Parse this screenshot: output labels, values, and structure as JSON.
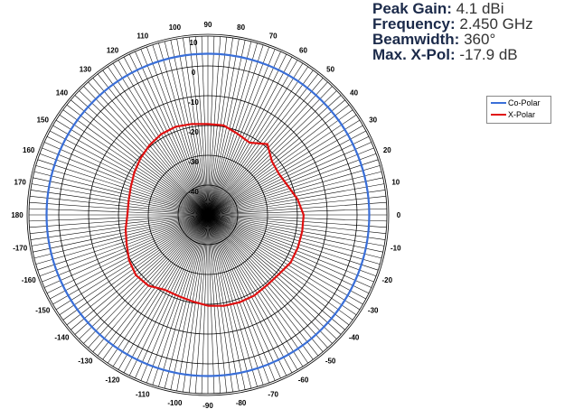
{
  "specs": [
    {
      "key": "Peak Gain:",
      "value": "4.1 dBi"
    },
    {
      "key": "Frequency:",
      "value": "2.450 GHz"
    },
    {
      "key": "Beamwidth:",
      "value": "360°"
    },
    {
      "key": "Max. X-Pol:",
      "value": "-17.9 dB"
    }
  ],
  "chart_data": {
    "type": "polar",
    "angular_unit": "degrees",
    "angular_ticks": [
      "90",
      "80",
      "70",
      "60",
      "50",
      "40",
      "30",
      "20",
      "10",
      "0",
      "-10",
      "-20",
      "-30",
      "-40",
      "-50",
      "-60",
      "-70",
      "-80",
      "-90",
      "-100",
      "-110",
      "-120",
      "-130",
      "-140",
      "-150",
      "-160",
      "-170",
      "180",
      "170",
      "160",
      "150",
      "140",
      "130",
      "120",
      "110",
      "100"
    ],
    "radial_ticks": [
      "10",
      "0",
      "-10",
      "-20",
      "-30",
      "-40"
    ],
    "radial_range": [
      -50,
      10
    ],
    "grid": true,
    "legend_position": "top-right",
    "series": [
      {
        "name": "Co-Polar",
        "color": "#3a6fd8",
        "angles": [
          0,
          90,
          180,
          270
        ],
        "values": [
          4.1,
          4.1,
          4.1,
          4.1
        ]
      },
      {
        "name": "X-Polar",
        "color": "#e01010",
        "angles": [
          0,
          10,
          20,
          30,
          40,
          50,
          60,
          70,
          80,
          90,
          100,
          110,
          120,
          130,
          140,
          150,
          160,
          170,
          180,
          190,
          200,
          210,
          220,
          230,
          240,
          250,
          260,
          270,
          280,
          290,
          300,
          310,
          320,
          330,
          340,
          350
        ],
        "values": [
          -17.9,
          -19.5,
          -21.5,
          -22.5,
          -22.0,
          -19.0,
          -22.0,
          -21.0,
          -19.5,
          -19.5,
          -19.0,
          -18.5,
          -18.7,
          -19.5,
          -20.5,
          -21.5,
          -22.5,
          -23.0,
          -23.0,
          -22.0,
          -21.0,
          -19.5,
          -18.5,
          -19.0,
          -21.0,
          -21.0,
          -20.5,
          -19.5,
          -19.0,
          -18.8,
          -18.8,
          -19.2,
          -19.0,
          -18.0,
          -17.9,
          -17.9
        ]
      }
    ]
  }
}
